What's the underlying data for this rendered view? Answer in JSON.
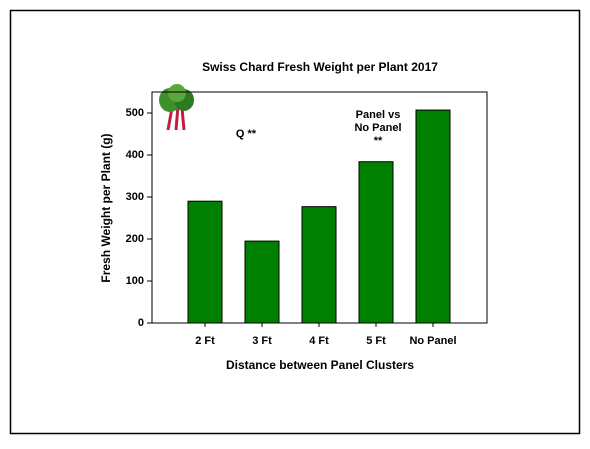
{
  "chart_data": {
    "type": "bar",
    "title": "Swiss Chard Fresh Weight per Plant 2017",
    "x_label": "Distance between Panel Clusters",
    "y_label": "Fresh Weight per Plant (g)",
    "categories": [
      "2 Ft",
      "3 Ft",
      "4 Ft",
      "5 Ft",
      "No Panel"
    ],
    "values": [
      290,
      195,
      277,
      384,
      507
    ],
    "color": "#008000",
    "ylim": [
      0,
      550
    ],
    "yticks": [
      0,
      100,
      200,
      300,
      400,
      500
    ],
    "annotations": [
      [
        "Q **"
      ],
      [
        "Panel vs",
        "No Panel",
        "**"
      ]
    ]
  }
}
